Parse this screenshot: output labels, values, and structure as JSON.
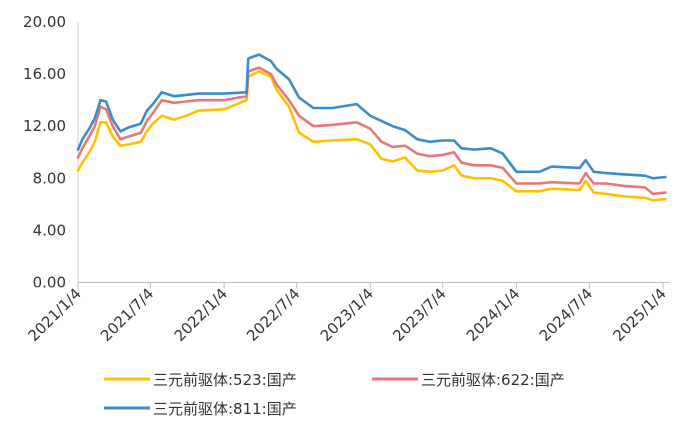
{
  "chart_data": {
    "type": "line",
    "title": "",
    "xlabel": "",
    "ylabel": "",
    "ylim": [
      0,
      20
    ],
    "y_ticks": [
      "0.00",
      "4.00",
      "8.00",
      "12.00",
      "16.00",
      "20.00"
    ],
    "x_ticks": [
      "2021/1/4",
      "2021/7/4",
      "2022/1/4",
      "2022/7/4",
      "2023/1/4",
      "2023/7/4",
      "2024/1/4",
      "2024/7/4",
      "2025/1/4"
    ],
    "grid": false,
    "legend_position": "bottom",
    "series": [
      {
        "name": "三元前驱体:523:国产",
        "color": "#FFC000",
        "points": [
          [
            "2021-01-04",
            8.6
          ],
          [
            "2021-01-15",
            9.2
          ],
          [
            "2021-02-01",
            10.0
          ],
          [
            "2021-02-15",
            10.8
          ],
          [
            "2021-03-01",
            12.3
          ],
          [
            "2021-03-15",
            12.3
          ],
          [
            "2021-04-01",
            11.2
          ],
          [
            "2021-04-20",
            10.5
          ],
          [
            "2021-05-10",
            10.6
          ],
          [
            "2021-06-10",
            10.8
          ],
          [
            "2021-06-25",
            11.6
          ],
          [
            "2021-07-10",
            12.2
          ],
          [
            "2021-08-01",
            12.8
          ],
          [
            "2021-09-01",
            12.5
          ],
          [
            "2021-10-01",
            12.8
          ],
          [
            "2021-11-01",
            13.2
          ],
          [
            "2022-01-04",
            13.3
          ],
          [
            "2022-03-01",
            14.0
          ],
          [
            "2022-03-05",
            15.8
          ],
          [
            "2022-04-01",
            16.2
          ],
          [
            "2022-05-01",
            15.8
          ],
          [
            "2022-05-15",
            14.8
          ],
          [
            "2022-06-15",
            13.5
          ],
          [
            "2022-07-10",
            11.5
          ],
          [
            "2022-08-15",
            10.8
          ],
          [
            "2022-10-01",
            10.9
          ],
          [
            "2022-12-01",
            11.0
          ],
          [
            "2023-01-04",
            10.6
          ],
          [
            "2023-02-01",
            9.5
          ],
          [
            "2023-03-01",
            9.3
          ],
          [
            "2023-04-01",
            9.6
          ],
          [
            "2023-05-01",
            8.6
          ],
          [
            "2023-06-01",
            8.5
          ],
          [
            "2023-07-04",
            8.6
          ],
          [
            "2023-08-01",
            9.0
          ],
          [
            "2023-08-20",
            8.2
          ],
          [
            "2023-09-20",
            8.0
          ],
          [
            "2023-11-01",
            8.0
          ],
          [
            "2023-12-01",
            7.8
          ],
          [
            "2024-01-04",
            7.0
          ],
          [
            "2024-03-01",
            7.0
          ],
          [
            "2024-04-01",
            7.2
          ],
          [
            "2024-06-10",
            7.1
          ],
          [
            "2024-06-25",
            7.8
          ],
          [
            "2024-07-15",
            6.9
          ],
          [
            "2024-08-15",
            6.8
          ],
          [
            "2024-10-01",
            6.6
          ],
          [
            "2024-11-20",
            6.5
          ],
          [
            "2024-12-10",
            6.3
          ],
          [
            "2025-01-10",
            6.4
          ]
        ]
      },
      {
        "name": "三元前驱体:622:国产",
        "color": "#E6787A",
        "points": [
          [
            "2021-01-04",
            9.6
          ],
          [
            "2021-01-15",
            10.3
          ],
          [
            "2021-02-01",
            11.2
          ],
          [
            "2021-02-15",
            12.0
          ],
          [
            "2021-03-01",
            13.5
          ],
          [
            "2021-03-15",
            13.3
          ],
          [
            "2021-04-01",
            12.0
          ],
          [
            "2021-04-20",
            11.0
          ],
          [
            "2021-05-10",
            11.2
          ],
          [
            "2021-06-10",
            11.5
          ],
          [
            "2021-06-25",
            12.4
          ],
          [
            "2021-07-10",
            13.0
          ],
          [
            "2021-08-01",
            14.0
          ],
          [
            "2021-09-01",
            13.8
          ],
          [
            "2021-10-01",
            13.9
          ],
          [
            "2021-11-01",
            14.0
          ],
          [
            "2022-01-04",
            14.0
          ],
          [
            "2022-03-01",
            14.3
          ],
          [
            "2022-03-05",
            16.2
          ],
          [
            "2022-04-01",
            16.5
          ],
          [
            "2022-05-01",
            16.0
          ],
          [
            "2022-05-15",
            15.2
          ],
          [
            "2022-06-15",
            14.0
          ],
          [
            "2022-07-10",
            12.8
          ],
          [
            "2022-08-15",
            12.0
          ],
          [
            "2022-10-01",
            12.1
          ],
          [
            "2022-12-01",
            12.3
          ],
          [
            "2023-01-04",
            11.8
          ],
          [
            "2023-02-01",
            10.8
          ],
          [
            "2023-03-01",
            10.4
          ],
          [
            "2023-04-01",
            10.5
          ],
          [
            "2023-05-01",
            9.9
          ],
          [
            "2023-06-01",
            9.7
          ],
          [
            "2023-07-04",
            9.8
          ],
          [
            "2023-08-01",
            10.0
          ],
          [
            "2023-08-20",
            9.2
          ],
          [
            "2023-09-20",
            9.0
          ],
          [
            "2023-11-01",
            9.0
          ],
          [
            "2023-12-01",
            8.8
          ],
          [
            "2024-01-04",
            7.6
          ],
          [
            "2024-03-01",
            7.6
          ],
          [
            "2024-04-01",
            7.7
          ],
          [
            "2024-06-10",
            7.6
          ],
          [
            "2024-06-25",
            8.4
          ],
          [
            "2024-07-15",
            7.6
          ],
          [
            "2024-08-15",
            7.6
          ],
          [
            "2024-10-01",
            7.4
          ],
          [
            "2024-11-20",
            7.3
          ],
          [
            "2024-12-10",
            6.8
          ],
          [
            "2025-01-10",
            6.9
          ]
        ]
      },
      {
        "name": "三元前驱体:811:国产",
        "color": "#3B8CC8",
        "points": [
          [
            "2021-01-04",
            10.2
          ],
          [
            "2021-01-15",
            11.0
          ],
          [
            "2021-02-01",
            11.8
          ],
          [
            "2021-02-15",
            12.6
          ],
          [
            "2021-03-01",
            14.0
          ],
          [
            "2021-03-15",
            13.9
          ],
          [
            "2021-04-01",
            12.5
          ],
          [
            "2021-04-20",
            11.6
          ],
          [
            "2021-05-10",
            11.9
          ],
          [
            "2021-06-10",
            12.2
          ],
          [
            "2021-06-25",
            13.2
          ],
          [
            "2021-07-10",
            13.7
          ],
          [
            "2021-08-01",
            14.6
          ],
          [
            "2021-09-01",
            14.3
          ],
          [
            "2021-10-01",
            14.4
          ],
          [
            "2021-11-01",
            14.5
          ],
          [
            "2022-01-04",
            14.5
          ],
          [
            "2022-03-01",
            14.6
          ],
          [
            "2022-03-05",
            17.2
          ],
          [
            "2022-04-01",
            17.5
          ],
          [
            "2022-05-01",
            17.0
          ],
          [
            "2022-05-15",
            16.4
          ],
          [
            "2022-06-15",
            15.6
          ],
          [
            "2022-07-10",
            14.2
          ],
          [
            "2022-08-15",
            13.4
          ],
          [
            "2022-10-01",
            13.4
          ],
          [
            "2022-12-01",
            13.7
          ],
          [
            "2023-01-04",
            12.8
          ],
          [
            "2023-02-01",
            12.4
          ],
          [
            "2023-03-01",
            12.0
          ],
          [
            "2023-04-01",
            11.7
          ],
          [
            "2023-05-01",
            11.0
          ],
          [
            "2023-06-01",
            10.8
          ],
          [
            "2023-07-04",
            10.9
          ],
          [
            "2023-08-01",
            10.9
          ],
          [
            "2023-08-20",
            10.3
          ],
          [
            "2023-09-20",
            10.2
          ],
          [
            "2023-11-01",
            10.3
          ],
          [
            "2023-12-01",
            9.9
          ],
          [
            "2024-01-04",
            8.5
          ],
          [
            "2024-03-01",
            8.5
          ],
          [
            "2024-04-01",
            8.9
          ],
          [
            "2024-06-10",
            8.8
          ],
          [
            "2024-06-25",
            9.4
          ],
          [
            "2024-07-15",
            8.5
          ],
          [
            "2024-08-15",
            8.4
          ],
          [
            "2024-10-01",
            8.3
          ],
          [
            "2024-11-20",
            8.2
          ],
          [
            "2024-12-10",
            8.0
          ],
          [
            "2025-01-10",
            8.1
          ]
        ]
      }
    ]
  }
}
